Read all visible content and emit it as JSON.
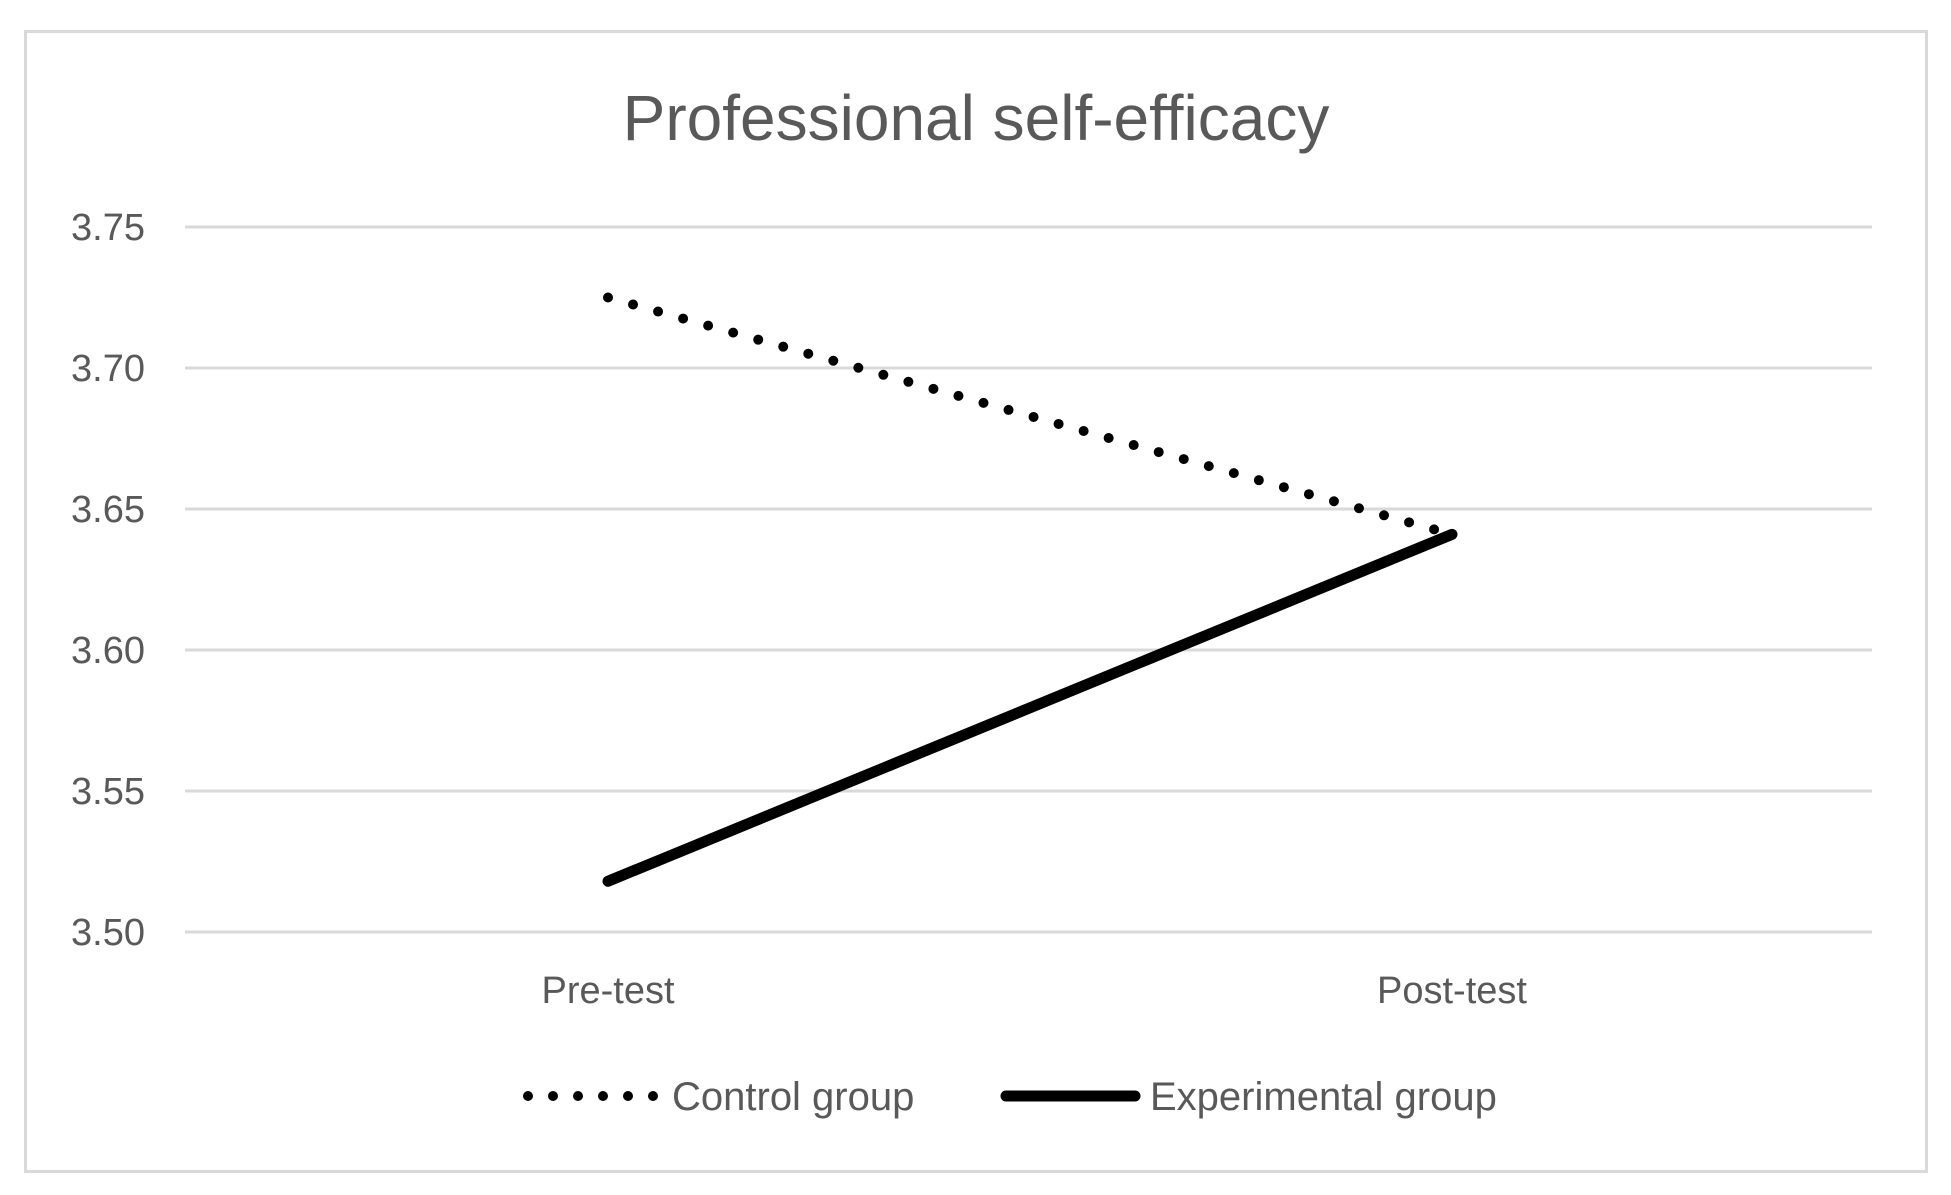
{
  "chart_data": {
    "type": "line",
    "title": "Professional self-efficacy",
    "xlabel": "",
    "ylabel": "",
    "categories": [
      "Pre-test",
      "Post-test"
    ],
    "ylim": [
      3.5,
      3.75
    ],
    "yticks": [
      "3.50",
      "3.55",
      "3.60",
      "3.65",
      "3.70",
      "3.75"
    ],
    "grid": true,
    "legend_position": "bottom",
    "series": [
      {
        "name": "Control group",
        "values": [
          3.725,
          3.641
        ],
        "style": "dotted",
        "color": "#000000"
      },
      {
        "name": "Experimental group",
        "values": [
          3.518,
          3.641
        ],
        "style": "solid",
        "color": "#000000"
      }
    ],
    "colors": {
      "text": "#595959",
      "grid": "#d9d9d9",
      "frame": "#d9d9d9"
    }
  }
}
